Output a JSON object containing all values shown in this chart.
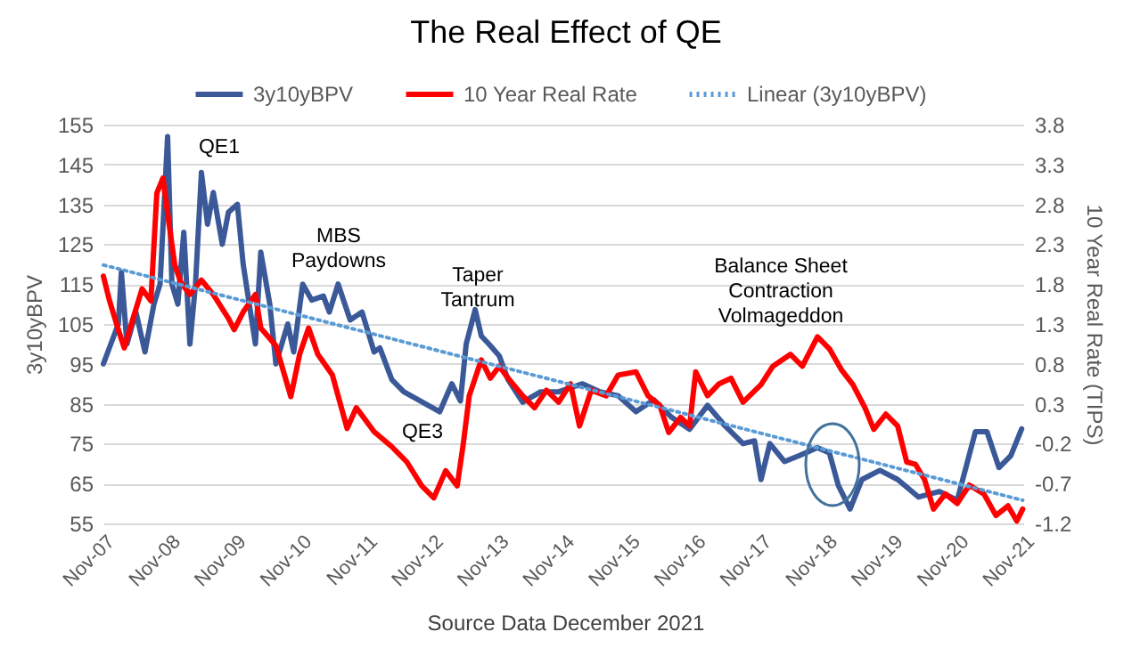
{
  "chart_data": {
    "type": "line",
    "title": "The Real Effect of QE",
    "ylabel": "3y10yBPV",
    "y2label": "10 Year Real Rate (TIPS)",
    "xlim": [
      "2007-11",
      "2021-11"
    ],
    "xticks": [
      {
        "value": "2007-11",
        "label": "Nov-07"
      },
      {
        "value": "2008-11",
        "label": "Nov-08"
      },
      {
        "value": "2009-11",
        "label": "Nov-09"
      },
      {
        "value": "2010-11",
        "label": "Nov-10"
      },
      {
        "value": "2011-11",
        "label": "Nov-11"
      },
      {
        "value": "2012-11",
        "label": "Nov-12"
      },
      {
        "value": "2013-11",
        "label": "Nov-13"
      },
      {
        "value": "2014-11",
        "label": "Nov-14"
      },
      {
        "value": "2015-11",
        "label": "Nov-15"
      },
      {
        "value": "2016-11",
        "label": "Nov-16"
      },
      {
        "value": "2017-11",
        "label": "Nov-17"
      },
      {
        "value": "2018-11",
        "label": "Nov-18"
      },
      {
        "value": "2019-11",
        "label": "Nov-19"
      },
      {
        "value": "2020-11",
        "label": "Nov-20"
      },
      {
        "value": "2021-11",
        "label": "Nov-21"
      }
    ],
    "ylim": [
      55,
      155
    ],
    "yticks": [
      55,
      65,
      75,
      85,
      95,
      105,
      115,
      125,
      135,
      145,
      155
    ],
    "y2lim": [
      -1.2,
      3.8
    ],
    "y2ticks": [
      -1.2,
      -0.7,
      -0.2,
      0.3,
      0.8,
      1.3,
      1.8,
      2.3,
      2.8,
      3.3,
      3.8
    ],
    "grid": "y",
    "legend": "top",
    "series": [
      {
        "name": "3y10yBPV",
        "color": "#3b5998",
        "line_style": "solid",
        "x": [
          "2007-11-01",
          "2008-01-23",
          "2008-02-09",
          "2008-03-11",
          "2008-04-30",
          "2008-06-19",
          "2008-08-08",
          "2008-09-11",
          "2008-10-23",
          "2008-11-16",
          "2008-12-19",
          "2009-01-21",
          "2009-02-24",
          "2009-03-27",
          "2009-04-29",
          "2009-06-02",
          "2009-07-04",
          "2009-08-23",
          "2009-09-26",
          "2009-11-15",
          "2009-12-17",
          "2010-01-20",
          "2010-02-23",
          "2010-03-25",
          "2010-05-14",
          "2010-06-17",
          "2010-08-22",
          "2010-09-24",
          "2010-11-13",
          "2011-01-02",
          "2011-03-08",
          "2011-04-10",
          "2011-05-29",
          "2011-08-04",
          "2011-10-09",
          "2011-12-15",
          "2012-01-16",
          "2012-03-23",
          "2012-05-28",
          "2012-09-05",
          "2012-12-14",
          "2013-02-19",
          "2013-04-08",
          "2013-05-10",
          "2013-06-29",
          "2013-08-02",
          "2013-09-21",
          "2013-11-10",
          "2013-12-29",
          "2014-03-20",
          "2014-06-28",
          "2014-10-06",
          "2015-02-16",
          "2015-05-24",
          "2015-09-02",
          "2015-12-10",
          "2016-03-18",
          "2016-06-25",
          "2016-10-03",
          "2017-01-11",
          "2017-04-19",
          "2017-07-27",
          "2017-09-29",
          "2017-11-04",
          "2017-12-23",
          "2018-03-15",
          "2018-06-06",
          "2018-09-14",
          "2018-11-19",
          "2019-01-08",
          "2019-03-14",
          "2019-05-19",
          "2019-08-27",
          "2019-12-04",
          "2020-03-29",
          "2020-07-23",
          "2020-10-30",
          "2021-02-08",
          "2021-04-13",
          "2021-06-19",
          "2021-08-24",
          "2021-10-23"
        ],
        "values": [
          95,
          105,
          118,
          100,
          108,
          98,
          110,
          115,
          152,
          115,
          110,
          128,
          100,
          115,
          143,
          130,
          138,
          125,
          133,
          135,
          120,
          110,
          100,
          123,
          110,
          95,
          105,
          98,
          115,
          111,
          112,
          108,
          115,
          106,
          108,
          98,
          99,
          91,
          88,
          85.5,
          83,
          90,
          85.7,
          100,
          108.6,
          102,
          99.6,
          97,
          91,
          85.4,
          88,
          88,
          90,
          88,
          87,
          83,
          86,
          81.6,
          78.6,
          84.6,
          79.4,
          75,
          75.7,
          66,
          75,
          70.5,
          72,
          74,
          72.7,
          64.5,
          58.6,
          66,
          68.3,
          66,
          61.6,
          63,
          60.8,
          78,
          78,
          69,
          72,
          78.7
        ]
      },
      {
        "name": "10 Year Real Rate",
        "color": "#ff0000",
        "line_style": "solid",
        "axis": "y2",
        "x": [
          "2007-11-01",
          "2007-12-04",
          "2008-01-23",
          "2008-02-25",
          "2008-04-14",
          "2008-06-03",
          "2008-07-22",
          "2008-08-24",
          "2008-09-27",
          "2008-10-30",
          "2008-12-02",
          "2009-01-05",
          "2009-02-24",
          "2009-04-29",
          "2009-07-04",
          "2009-09-26",
          "2009-10-28",
          "2009-12-17",
          "2010-02-23",
          "2010-03-25",
          "2010-06-17",
          "2010-09-08",
          "2010-10-27",
          "2010-12-16",
          "2011-02-05",
          "2011-04-27",
          "2011-07-18",
          "2011-09-07",
          "2011-12-15",
          "2012-03-23",
          "2012-06-14",
          "2012-09-05",
          "2012-11-11",
          "2013-01-16",
          "2013-03-21",
          "2013-04-24",
          "2013-05-27",
          "2013-08-02",
          "2013-09-21",
          "2013-11-10",
          "2013-12-29",
          "2014-03-20",
          "2014-05-25",
          "2014-07-30",
          "2014-10-06",
          "2014-12-11",
          "2015-01-30",
          "2015-04-05",
          "2015-06-27",
          "2015-09-02",
          "2015-12-10",
          "2016-02-15",
          "2016-04-20",
          "2016-06-09",
          "2016-08-14",
          "2016-10-03",
          "2016-11-06",
          "2017-01-11",
          "2017-03-16",
          "2017-05-21",
          "2017-07-27",
          "2017-11-04",
          "2018-01-09",
          "2018-04-17",
          "2018-06-22",
          "2018-09-14",
          "2018-11-19",
          "2019-01-24",
          "2019-03-30",
          "2019-06-05",
          "2019-07-24",
          "2019-09-29",
          "2019-12-04",
          "2020-01-23",
          "2020-03-12",
          "2020-05-01",
          "2020-06-20",
          "2020-08-25",
          "2020-10-30",
          "2021-01-05",
          "2021-03-27",
          "2021-06-02",
          "2021-08-08",
          "2021-09-26",
          "2021-10-29"
        ],
        "values": [
          1.9,
          1.6,
          1.23,
          1.0,
          1.37,
          1.74,
          1.59,
          2.94,
          3.13,
          2.57,
          2.04,
          1.82,
          1.67,
          1.85,
          1.67,
          1.37,
          1.23,
          1.45,
          1.67,
          1.25,
          1.03,
          0.39,
          0.92,
          1.25,
          0.92,
          0.66,
          -0.01,
          0.25,
          -0.05,
          -0.24,
          -0.43,
          -0.73,
          -0.88,
          -0.54,
          -0.73,
          -0.2,
          0.4,
          0.85,
          0.62,
          0.77,
          0.62,
          0.4,
          0.25,
          0.47,
          0.32,
          0.55,
          0.02,
          0.47,
          0.4,
          0.66,
          0.7,
          0.4,
          0.28,
          -0.06,
          0.13,
          0.02,
          0.7,
          0.4,
          0.55,
          0.62,
          0.32,
          0.54,
          0.77,
          0.92,
          0.77,
          1.14,
          0.99,
          0.73,
          0.54,
          0.25,
          -0.02,
          0.17,
          0.02,
          -0.43,
          -0.46,
          -0.65,
          -1.02,
          -0.83,
          -0.95,
          -0.72,
          -0.83,
          -1.1,
          -0.98,
          -1.17,
          -1.02
        ]
      },
      {
        "name": "Linear (3y10yBPV)",
        "color": "#5b9bd5",
        "line_style": "dotted",
        "x": [
          "2007-11-01",
          "2021-10-29"
        ],
        "values": [
          119.8,
          60.8
        ]
      }
    ],
    "annotations": [
      "QE1",
      "MBS\nPaydowns",
      "Taper\nTantrum",
      "QE3",
      "Balance Sheet\nContraction\nVolmageddon",
      "Source Data December 2021"
    ]
  }
}
